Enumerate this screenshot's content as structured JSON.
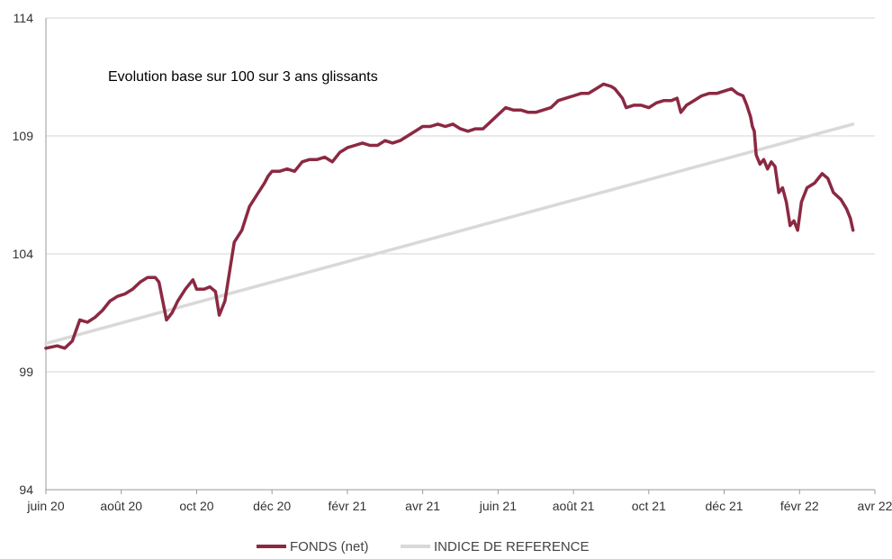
{
  "chart_data": {
    "type": "line",
    "title": "Evolution base sur 100 sur 3 ans glissants",
    "xlabel": "",
    "ylabel": "",
    "x_ticks": [
      "juin 20",
      "août 20",
      "oct 20",
      "déc 20",
      "févr 21",
      "avr 21",
      "juin 21",
      "août 21",
      "oct 21",
      "déc 21",
      "févr 22",
      "avr 22"
    ],
    "x_range": [
      0,
      22
    ],
    "y_ticks": [
      "94",
      "99",
      "104",
      "109",
      "114"
    ],
    "ylim": [
      94,
      114
    ],
    "grid": "horizontal",
    "legend_position": "bottom",
    "series": [
      {
        "name": "FONDS (net)",
        "color": "#8b2942",
        "points": [
          [
            0.0,
            100.0
          ],
          [
            0.3,
            100.1
          ],
          [
            0.5,
            100.0
          ],
          [
            0.7,
            100.3
          ],
          [
            0.9,
            101.2
          ],
          [
            1.1,
            101.1
          ],
          [
            1.3,
            101.3
          ],
          [
            1.5,
            101.6
          ],
          [
            1.7,
            102.0
          ],
          [
            1.9,
            102.2
          ],
          [
            2.1,
            102.3
          ],
          [
            2.3,
            102.5
          ],
          [
            2.5,
            102.8
          ],
          [
            2.7,
            103.0
          ],
          [
            2.9,
            103.0
          ],
          [
            3.0,
            102.8
          ],
          [
            3.1,
            102.0
          ],
          [
            3.2,
            101.2
          ],
          [
            3.35,
            101.5
          ],
          [
            3.5,
            102.0
          ],
          [
            3.7,
            102.5
          ],
          [
            3.9,
            102.9
          ],
          [
            4.0,
            102.5
          ],
          [
            4.2,
            102.5
          ],
          [
            4.35,
            102.6
          ],
          [
            4.5,
            102.4
          ],
          [
            4.6,
            101.4
          ],
          [
            4.75,
            102.0
          ],
          [
            4.9,
            103.5
          ],
          [
            5.0,
            104.5
          ],
          [
            5.2,
            105.0
          ],
          [
            5.4,
            106.0
          ],
          [
            5.6,
            106.5
          ],
          [
            5.8,
            107.0
          ],
          [
            5.9,
            107.3
          ],
          [
            6.0,
            107.5
          ],
          [
            6.2,
            107.5
          ],
          [
            6.4,
            107.6
          ],
          [
            6.6,
            107.5
          ],
          [
            6.8,
            107.9
          ],
          [
            7.0,
            108.0
          ],
          [
            7.2,
            108.0
          ],
          [
            7.4,
            108.1
          ],
          [
            7.6,
            107.9
          ],
          [
            7.8,
            108.3
          ],
          [
            8.0,
            108.5
          ],
          [
            8.2,
            108.6
          ],
          [
            8.4,
            108.7
          ],
          [
            8.6,
            108.6
          ],
          [
            8.8,
            108.6
          ],
          [
            9.0,
            108.8
          ],
          [
            9.2,
            108.7
          ],
          [
            9.4,
            108.8
          ],
          [
            9.6,
            109.0
          ],
          [
            9.8,
            109.2
          ],
          [
            10.0,
            109.4
          ],
          [
            10.2,
            109.4
          ],
          [
            10.4,
            109.5
          ],
          [
            10.6,
            109.4
          ],
          [
            10.8,
            109.5
          ],
          [
            11.0,
            109.3
          ],
          [
            11.2,
            109.2
          ],
          [
            11.4,
            109.3
          ],
          [
            11.6,
            109.3
          ],
          [
            11.8,
            109.6
          ],
          [
            12.0,
            109.9
          ],
          [
            12.2,
            110.2
          ],
          [
            12.4,
            110.1
          ],
          [
            12.6,
            110.1
          ],
          [
            12.8,
            110.0
          ],
          [
            13.0,
            110.0
          ],
          [
            13.2,
            110.1
          ],
          [
            13.4,
            110.2
          ],
          [
            13.6,
            110.5
          ],
          [
            13.8,
            110.6
          ],
          [
            14.0,
            110.7
          ],
          [
            14.2,
            110.8
          ],
          [
            14.4,
            110.8
          ],
          [
            14.6,
            111.0
          ],
          [
            14.8,
            111.2
          ],
          [
            15.0,
            111.1
          ],
          [
            15.1,
            111.0
          ],
          [
            15.3,
            110.6
          ],
          [
            15.4,
            110.2
          ],
          [
            15.6,
            110.3
          ],
          [
            15.8,
            110.3
          ],
          [
            16.0,
            110.2
          ],
          [
            16.2,
            110.4
          ],
          [
            16.4,
            110.5
          ],
          [
            16.6,
            110.5
          ],
          [
            16.75,
            110.6
          ],
          [
            16.85,
            110.0
          ],
          [
            17.0,
            110.3
          ],
          [
            17.2,
            110.5
          ],
          [
            17.4,
            110.7
          ],
          [
            17.6,
            110.8
          ],
          [
            17.8,
            110.8
          ],
          [
            18.0,
            110.9
          ],
          [
            18.2,
            111.0
          ],
          [
            18.35,
            110.8
          ],
          [
            18.5,
            110.7
          ],
          [
            18.6,
            110.3
          ],
          [
            18.7,
            109.8
          ],
          [
            18.75,
            109.4
          ],
          [
            18.8,
            109.2
          ],
          [
            18.85,
            108.2
          ],
          [
            18.95,
            107.8
          ],
          [
            19.05,
            108.0
          ],
          [
            19.15,
            107.6
          ],
          [
            19.25,
            107.9
          ],
          [
            19.35,
            107.7
          ],
          [
            19.45,
            106.6
          ],
          [
            19.55,
            106.8
          ],
          [
            19.65,
            106.2
          ],
          [
            19.75,
            105.2
          ],
          [
            19.85,
            105.4
          ],
          [
            19.95,
            105.0
          ],
          [
            20.05,
            106.2
          ],
          [
            20.2,
            106.8
          ],
          [
            20.4,
            107.0
          ],
          [
            20.6,
            107.4
          ],
          [
            20.75,
            107.2
          ],
          [
            20.9,
            106.6
          ],
          [
            21.1,
            106.3
          ],
          [
            21.25,
            105.9
          ],
          [
            21.35,
            105.5
          ],
          [
            21.42,
            105.0
          ]
        ]
      },
      {
        "name": "INDICE DE REFERENCE",
        "color": "#d9d9d9",
        "points": [
          [
            0.0,
            100.2
          ],
          [
            21.42,
            109.5
          ]
        ]
      }
    ]
  }
}
